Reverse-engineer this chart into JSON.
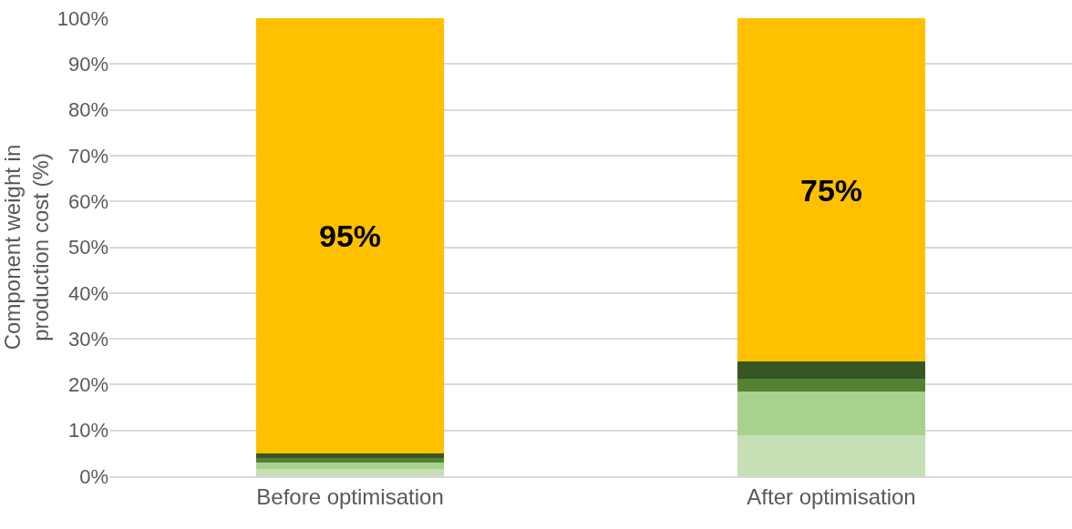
{
  "chart_data": {
    "type": "bar",
    "stacked": true,
    "ylabel": "Component weight in production cost (%)",
    "categories": [
      "Before optimisation",
      "After optimisation"
    ],
    "series": [
      {
        "color": "#c5e0b4",
        "values": [
          1.5,
          9
        ]
      },
      {
        "color": "#a9d18e",
        "values": [
          1.4,
          9.5
        ]
      },
      {
        "color": "#548235",
        "values": [
          1.0,
          2.7
        ]
      },
      {
        "color": "#375623",
        "values": [
          1.1,
          3.8
        ]
      },
      {
        "color": "#ffc000",
        "values": [
          95,
          75
        ],
        "value_labels": [
          "95%",
          "75%"
        ]
      }
    ],
    "ylim": [
      0,
      100
    ],
    "yticks": [
      {
        "value": 0,
        "label": "0%"
      },
      {
        "value": 10,
        "label": "10%"
      },
      {
        "value": 20,
        "label": "20%"
      },
      {
        "value": 30,
        "label": "30%"
      },
      {
        "value": 40,
        "label": "40%"
      },
      {
        "value": 50,
        "label": "50%"
      },
      {
        "value": 60,
        "label": "60%"
      },
      {
        "value": 70,
        "label": "70%"
      },
      {
        "value": 80,
        "label": "80%"
      },
      {
        "value": 90,
        "label": "90%"
      },
      {
        "value": 100,
        "label": "100%"
      }
    ],
    "grid": "y"
  }
}
